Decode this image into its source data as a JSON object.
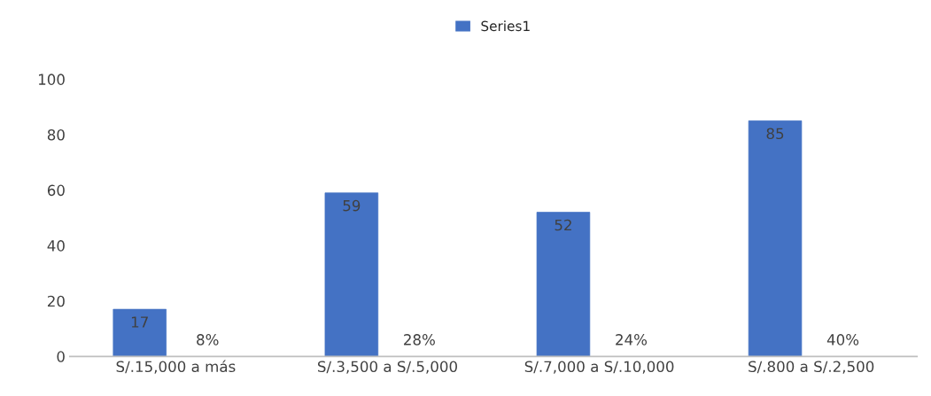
{
  "chart_data": {
    "type": "bar",
    "categories": [
      "S/.15,000 a más",
      "S/.3,500 a S/.5,000",
      "S/.7,000 a S/.10,000",
      "S/.800 a S/.2,500"
    ],
    "series": [
      {
        "name": "Series1",
        "color": "#4472c4",
        "values": [
          17,
          59,
          52,
          85
        ]
      }
    ],
    "data_labels": true,
    "annotations": [
      "8%",
      "28%",
      "24%",
      "40%"
    ],
    "ylim": [
      0,
      100
    ],
    "yticks": [
      0,
      20,
      40,
      60,
      80,
      100
    ],
    "grid": false,
    "legend": "top"
  }
}
